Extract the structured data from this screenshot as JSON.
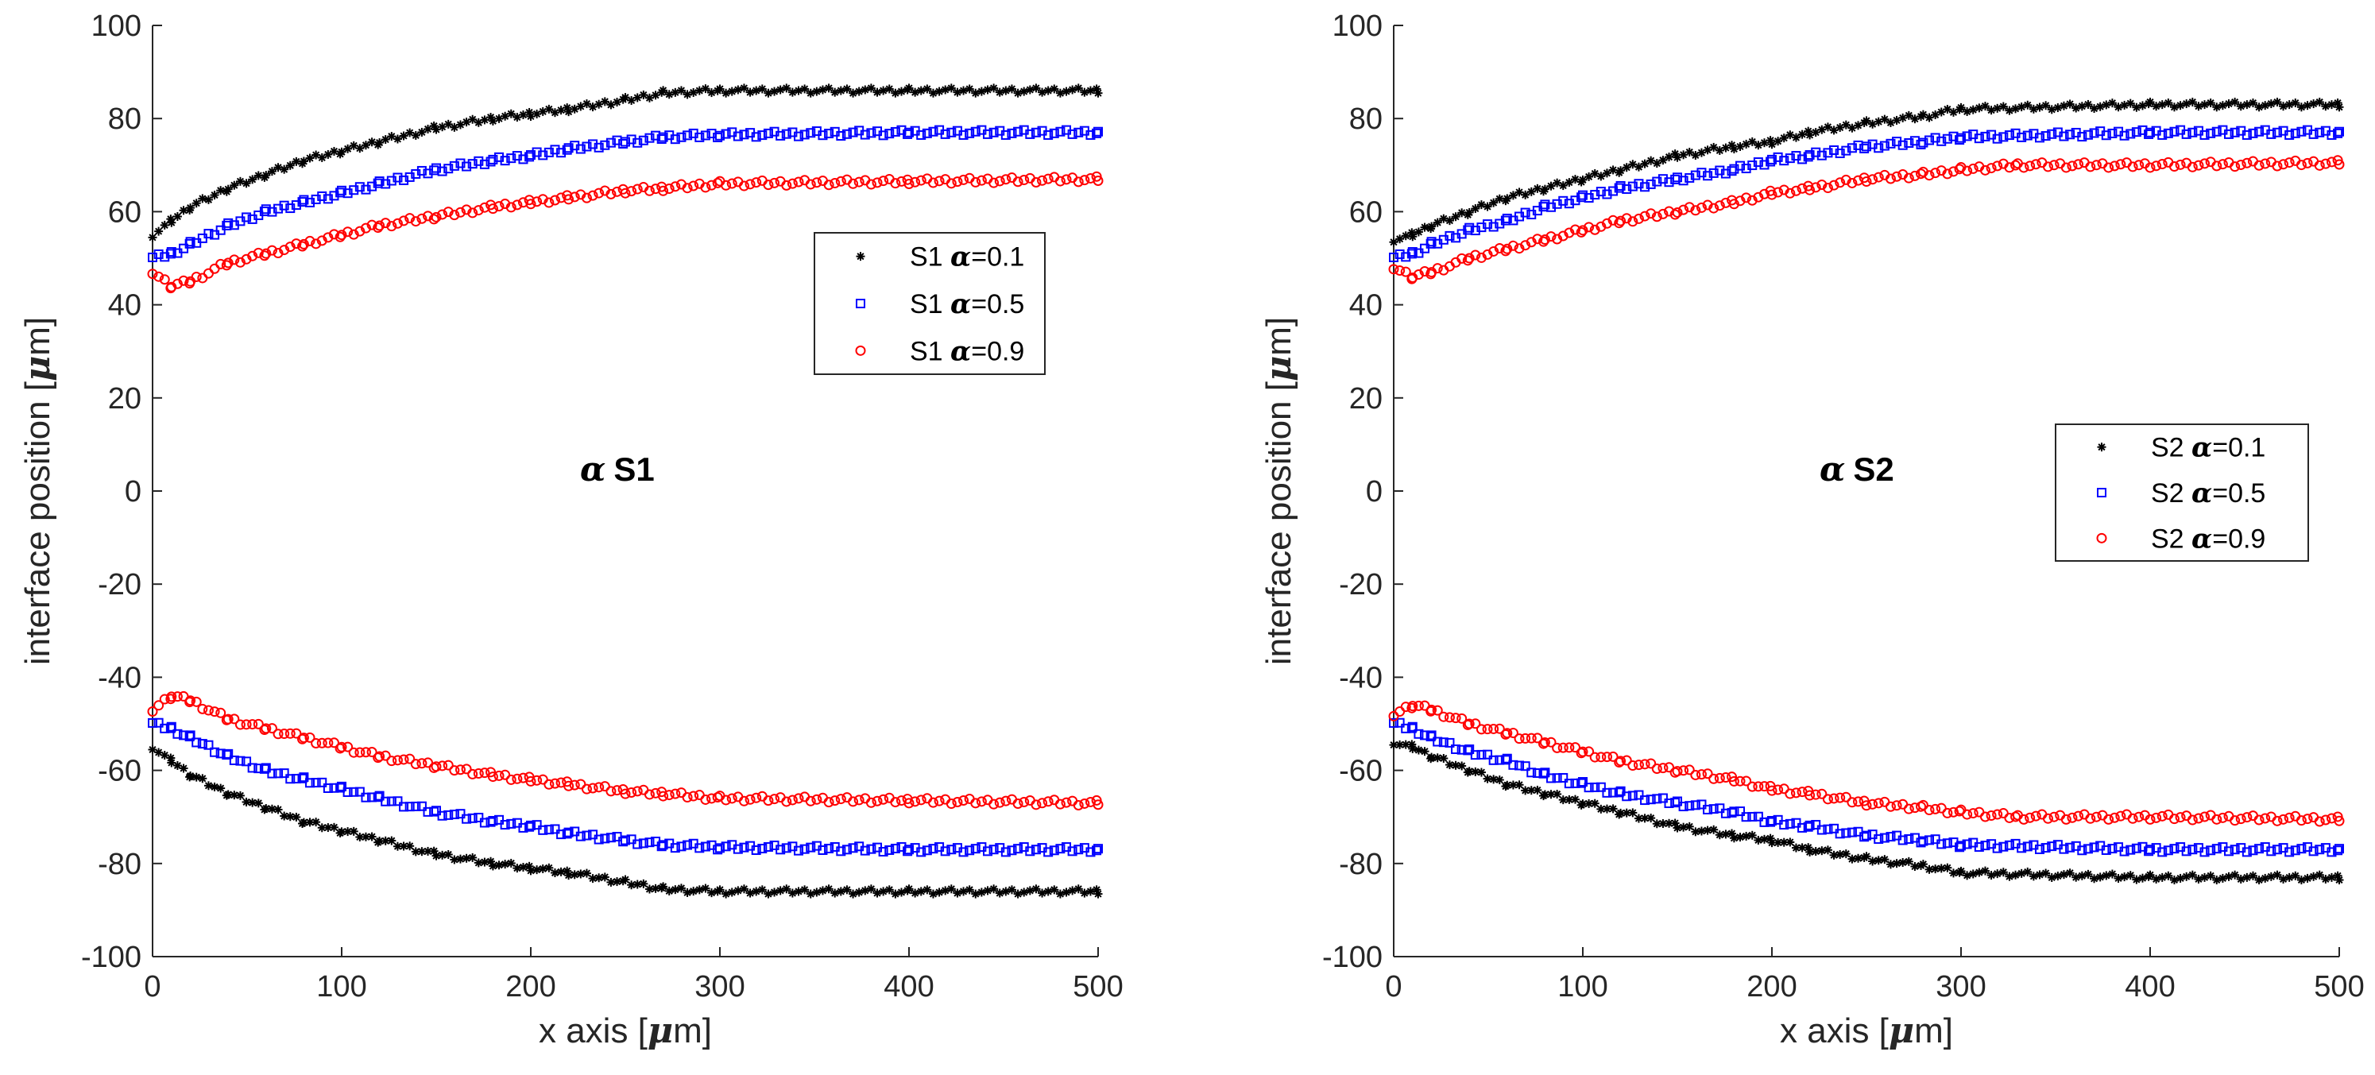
{
  "chart_data": [
    {
      "type": "scatter",
      "name": "panel-s1",
      "annotation": {
        "greek": "α",
        "text": "S1"
      },
      "xlabel": {
        "prefix": "x axis [",
        "greek": "μ",
        "suffix": "m]"
      },
      "ylabel": {
        "prefix": "interface position [",
        "greek": "μ",
        "suffix": "m]"
      },
      "xlim": [
        0,
        500
      ],
      "ylim": [
        -100,
        100
      ],
      "xticks": [
        0,
        100,
        200,
        300,
        400,
        500
      ],
      "yticks": [
        -100,
        -80,
        -60,
        -40,
        -20,
        0,
        20,
        40,
        60,
        80,
        100
      ],
      "legend_position": "upper-right",
      "series": [
        {
          "name": "S1 α=0.1",
          "legend": {
            "prefix": "S1 ",
            "greek": "α",
            "suffix": "=0.1"
          },
          "marker": "star",
          "color": "#000000",
          "upper": [
            [
              0,
              55
            ],
            [
              10,
              58
            ],
            [
              20,
              61
            ],
            [
              40,
              65
            ],
            [
              60,
              68
            ],
            [
              80,
              71
            ],
            [
              100,
              73
            ],
            [
              120,
              75
            ],
            [
              150,
              78
            ],
            [
              180,
              80
            ],
            [
              200,
              81
            ],
            [
              220,
              82
            ],
            [
              250,
              84
            ],
            [
              270,
              85.5
            ],
            [
              300,
              86
            ],
            [
              400,
              86
            ],
            [
              500,
              86
            ]
          ],
          "lower": [
            [
              0,
              -55
            ],
            [
              10,
              -58
            ],
            [
              20,
              -61
            ],
            [
              40,
              -65
            ],
            [
              60,
              -68
            ],
            [
              80,
              -71
            ],
            [
              100,
              -73
            ],
            [
              120,
              -75
            ],
            [
              150,
              -78
            ],
            [
              180,
              -80
            ],
            [
              200,
              -81
            ],
            [
              220,
              -82
            ],
            [
              250,
              -84
            ],
            [
              270,
              -85.5
            ],
            [
              300,
              -86
            ],
            [
              400,
              -86
            ],
            [
              500,
              -86
            ]
          ]
        },
        {
          "name": "S1 α=0.5",
          "legend": {
            "prefix": "S1 ",
            "greek": "α",
            "suffix": "=0.5"
          },
          "marker": "square",
          "color": "#0000ff",
          "upper": [
            [
              0,
              50
            ],
            [
              10,
              51
            ],
            [
              20,
              53
            ],
            [
              40,
              57
            ],
            [
              60,
              60
            ],
            [
              80,
              62
            ],
            [
              100,
              64
            ],
            [
              120,
              66
            ],
            [
              150,
              69
            ],
            [
              180,
              71
            ],
            [
              200,
              72
            ],
            [
              220,
              73.5
            ],
            [
              250,
              75
            ],
            [
              270,
              76
            ],
            [
              300,
              76.5
            ],
            [
              400,
              77
            ],
            [
              500,
              77
            ]
          ],
          "lower": [
            [
              0,
              -50
            ],
            [
              10,
              -51
            ],
            [
              20,
              -53
            ],
            [
              40,
              -57
            ],
            [
              60,
              -60
            ],
            [
              80,
              -62
            ],
            [
              100,
              -64
            ],
            [
              120,
              -66
            ],
            [
              150,
              -69
            ],
            [
              180,
              -71
            ],
            [
              200,
              -72
            ],
            [
              220,
              -73.5
            ],
            [
              250,
              -75
            ],
            [
              270,
              -76
            ],
            [
              300,
              -76.5
            ],
            [
              400,
              -77
            ],
            [
              500,
              -77
            ]
          ]
        },
        {
          "name": "S1 α=0.9",
          "legend": {
            "prefix": "S1 ",
            "greek": "α",
            "suffix": "=0.9"
          },
          "marker": "circle",
          "color": "#ff0000",
          "upper": [
            [
              0,
              47
            ],
            [
              10,
              44
            ],
            [
              20,
              45
            ],
            [
              40,
              49
            ],
            [
              60,
              51
            ],
            [
              80,
              53
            ],
            [
              100,
              55
            ],
            [
              120,
              57
            ],
            [
              150,
              59
            ],
            [
              180,
              61
            ],
            [
              200,
              62
            ],
            [
              220,
              63
            ],
            [
              250,
              64.5
            ],
            [
              270,
              65
            ],
            [
              300,
              66
            ],
            [
              400,
              66.5
            ],
            [
              500,
              67
            ]
          ],
          "lower": [
            [
              0,
              -47
            ],
            [
              10,
              -44
            ],
            [
              20,
              -45
            ],
            [
              40,
              -49
            ],
            [
              60,
              -51
            ],
            [
              80,
              -53
            ],
            [
              100,
              -55
            ],
            [
              120,
              -57
            ],
            [
              150,
              -59
            ],
            [
              180,
              -61
            ],
            [
              200,
              -62
            ],
            [
              220,
              -63
            ],
            [
              250,
              -64.5
            ],
            [
              270,
              -65
            ],
            [
              300,
              -66
            ],
            [
              400,
              -66.5
            ],
            [
              500,
              -67
            ]
          ]
        }
      ]
    },
    {
      "type": "scatter",
      "name": "panel-s2",
      "annotation": {
        "greek": "α",
        "text": "S2"
      },
      "xlabel": {
        "prefix": "x axis [",
        "greek": "μ",
        "suffix": "m]"
      },
      "ylabel": {
        "prefix": "interface position [",
        "greek": "μ",
        "suffix": "m]"
      },
      "xlim": [
        0,
        500
      ],
      "ylim": [
        -100,
        100
      ],
      "xticks": [
        0,
        100,
        200,
        300,
        400,
        500
      ],
      "yticks": [
        -100,
        -80,
        -60,
        -40,
        -20,
        0,
        20,
        40,
        60,
        80,
        100
      ],
      "legend_position": "middle-right",
      "series": [
        {
          "name": "S2 α=0.1",
          "legend": {
            "prefix": "S2 ",
            "greek": "α",
            "suffix": "=0.1"
          },
          "marker": "star",
          "color": "#000000",
          "upper": [
            [
              0,
              54
            ],
            [
              10,
              55
            ],
            [
              20,
              57
            ],
            [
              40,
              60
            ],
            [
              60,
              63
            ],
            [
              80,
              65
            ],
            [
              100,
              67
            ],
            [
              120,
              69
            ],
            [
              150,
              72
            ],
            [
              180,
              74
            ],
            [
              200,
              75
            ],
            [
              220,
              77
            ],
            [
              250,
              79
            ],
            [
              280,
              80.5
            ],
            [
              300,
              82
            ],
            [
              400,
              83
            ],
            [
              500,
              83
            ]
          ],
          "lower": [
            [
              0,
              -54
            ],
            [
              10,
              -55
            ],
            [
              20,
              -57
            ],
            [
              40,
              -60
            ],
            [
              60,
              -63
            ],
            [
              80,
              -65
            ],
            [
              100,
              -67
            ],
            [
              120,
              -69
            ],
            [
              150,
              -72
            ],
            [
              180,
              -74
            ],
            [
              200,
              -75
            ],
            [
              220,
              -77
            ],
            [
              250,
              -79
            ],
            [
              280,
              -80.5
            ],
            [
              300,
              -82
            ],
            [
              400,
              -83
            ],
            [
              500,
              -83
            ]
          ]
        },
        {
          "name": "S2 α=0.5",
          "legend": {
            "prefix": "S2 ",
            "greek": "α",
            "suffix": "=0.5"
          },
          "marker": "square",
          "color": "#0000ff",
          "upper": [
            [
              0,
              50
            ],
            [
              10,
              51
            ],
            [
              20,
              53
            ],
            [
              40,
              56
            ],
            [
              60,
              58
            ],
            [
              80,
              61
            ],
            [
              100,
              63
            ],
            [
              120,
              65
            ],
            [
              150,
              67
            ],
            [
              180,
              69
            ],
            [
              200,
              71
            ],
            [
              220,
              72
            ],
            [
              250,
              74
            ],
            [
              280,
              75
            ],
            [
              300,
              76
            ],
            [
              400,
              77
            ],
            [
              500,
              77
            ]
          ],
          "lower": [
            [
              0,
              -50
            ],
            [
              10,
              -51
            ],
            [
              20,
              -53
            ],
            [
              40,
              -56
            ],
            [
              60,
              -58
            ],
            [
              80,
              -61
            ],
            [
              100,
              -63
            ],
            [
              120,
              -65
            ],
            [
              150,
              -67
            ],
            [
              180,
              -69
            ],
            [
              200,
              -71
            ],
            [
              220,
              -72
            ],
            [
              250,
              -74
            ],
            [
              280,
              -75
            ],
            [
              300,
              -76
            ],
            [
              400,
              -77
            ],
            [
              500,
              -77
            ]
          ]
        },
        {
          "name": "S2 α=0.9",
          "legend": {
            "prefix": "S2 ",
            "greek": "α",
            "suffix": "=0.9"
          },
          "marker": "circle",
          "color": "#ff0000",
          "upper": [
            [
              0,
              48
            ],
            [
              10,
              46
            ],
            [
              20,
              47
            ],
            [
              40,
              50
            ],
            [
              60,
              52
            ],
            [
              80,
              54
            ],
            [
              100,
              56
            ],
            [
              120,
              58
            ],
            [
              150,
              60
            ],
            [
              180,
              62
            ],
            [
              200,
              64
            ],
            [
              220,
              65
            ],
            [
              250,
              67
            ],
            [
              280,
              68
            ],
            [
              300,
              69
            ],
            [
              330,
              70
            ],
            [
              400,
              70
            ],
            [
              500,
              70.5
            ]
          ],
          "lower": [
            [
              0,
              -48
            ],
            [
              10,
              -46
            ],
            [
              20,
              -47
            ],
            [
              40,
              -50
            ],
            [
              60,
              -52
            ],
            [
              80,
              -54
            ],
            [
              100,
              -56
            ],
            [
              120,
              -58
            ],
            [
              150,
              -60
            ],
            [
              180,
              -62
            ],
            [
              200,
              -64
            ],
            [
              220,
              -65
            ],
            [
              250,
              -67
            ],
            [
              280,
              -68
            ],
            [
              300,
              -69
            ],
            [
              330,
              -70
            ],
            [
              400,
              -70
            ],
            [
              500,
              -70.5
            ]
          ]
        }
      ]
    }
  ]
}
